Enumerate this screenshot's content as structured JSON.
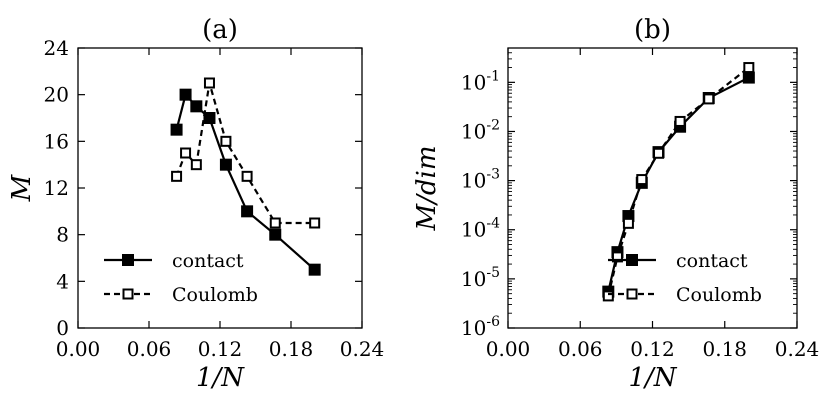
{
  "chart_data": [
    {
      "type": "line",
      "title": "(a)",
      "xlabel": "1/N",
      "ylabel": "M",
      "xlim": [
        0.0,
        0.24
      ],
      "ylim": [
        0,
        24
      ],
      "yscale": "linear",
      "xticks": [
        0.0,
        0.06,
        0.12,
        0.18,
        0.24
      ],
      "xtick_labels": [
        "0.00",
        "0.06",
        "0.12",
        "0.18",
        "0.24"
      ],
      "yticks": [
        0,
        4,
        8,
        12,
        16,
        20,
        24
      ],
      "ytick_labels": [
        "0",
        "4",
        "8",
        "12",
        "16",
        "20",
        "24"
      ],
      "legend_position": "lower-left",
      "series": [
        {
          "name": "contact",
          "style": "solid",
          "marker": "filled-square",
          "color": "#000000",
          "x": [
            0.0833,
            0.0909,
            0.1,
            0.1111,
            0.125,
            0.1429,
            0.1667,
            0.2
          ],
          "y": [
            17,
            20,
            19,
            18,
            14,
            10,
            8,
            5
          ]
        },
        {
          "name": "Coulomb",
          "style": "dashed",
          "marker": "open-square",
          "color": "#000000",
          "x": [
            0.0833,
            0.0909,
            0.1,
            0.1111,
            0.125,
            0.1429,
            0.1667,
            0.2
          ],
          "y": [
            13,
            15,
            14,
            21,
            16,
            13,
            9,
            9
          ]
        }
      ]
    },
    {
      "type": "line",
      "title": "(b)",
      "xlabel": "1/N",
      "ylabel": "M/dim",
      "xlim": [
        0.0,
        0.24
      ],
      "ylim": [
        1e-06,
        0.5
      ],
      "yscale": "log",
      "xticks": [
        0.0,
        0.06,
        0.12,
        0.18,
        0.24
      ],
      "xtick_labels": [
        "0.00",
        "0.06",
        "0.12",
        "0.18",
        "0.24"
      ],
      "yticks": [
        1e-06,
        1e-05,
        0.0001,
        0.001,
        0.01,
        0.1
      ],
      "ytick_exponents": [
        "-6",
        "-5",
        "-4",
        "-3",
        "-2",
        "-1"
      ],
      "ytick_base": "10",
      "legend_position": "lower-right",
      "series": [
        {
          "name": "contact",
          "style": "solid",
          "marker": "filled-square",
          "color": "#000000",
          "x": [
            0.0833,
            0.0909,
            0.1,
            0.1111,
            0.125,
            0.1429,
            0.1667,
            0.2
          ],
          "y": [
            5.5e-06,
            3.5e-05,
            0.00019,
            0.0009,
            0.0038,
            0.0125,
            0.048,
            0.125
          ]
        },
        {
          "name": "Coulomb",
          "style": "dashed",
          "marker": "open-square",
          "color": "#000000",
          "x": [
            0.0833,
            0.0909,
            0.1,
            0.1111,
            0.125,
            0.1429,
            0.1667,
            0.2
          ],
          "y": [
            4.5e-06,
            2.8e-05,
            0.000135,
            0.00105,
            0.0036,
            0.016,
            0.046,
            0.2
          ]
        }
      ]
    }
  ]
}
